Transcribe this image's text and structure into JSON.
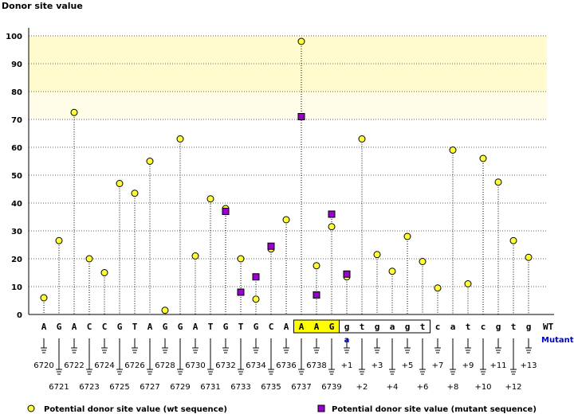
{
  "colors": {
    "wt_marker": "#ffff33",
    "mutant_marker": "#9900cc",
    "mutant_label": "#0000cc",
    "band": "#fffbcc",
    "band_faint": "#fffde8",
    "highlight": "#ffff00",
    "grid": "#666666"
  },
  "chart_data": {
    "type": "scatter",
    "ylabel": "Donor site value",
    "ylim": [
      0,
      100
    ],
    "yticks": [
      0,
      10,
      20,
      30,
      40,
      50,
      60,
      70,
      80,
      90,
      100
    ],
    "band_range": [
      70,
      100
    ],
    "grid": true,
    "sequence": {
      "bases": [
        "A",
        "G",
        "A",
        "C",
        "C",
        "G",
        "T",
        "A",
        "G",
        "G",
        "A",
        "T",
        "G",
        "T",
        "G",
        "C",
        "A",
        "A",
        "A",
        "G",
        "g",
        "t",
        "g",
        "a",
        "g",
        "t",
        "c",
        "a",
        "t",
        "c",
        "g",
        "t",
        "g"
      ],
      "exon_box": [
        17,
        19
      ],
      "intron_box": [
        20,
        25
      ],
      "wt_label": "WT",
      "mutant_label": "Mutant",
      "mutant_index": 20,
      "mutant_base": "a"
    },
    "positions": [
      "6720",
      "6721",
      "6722",
      "6723",
      "6724",
      "6725",
      "6726",
      "6727",
      "6728",
      "6729",
      "6730",
      "6731",
      "6732",
      "6733",
      "6734",
      "6735",
      "6736",
      "6737",
      "6738",
      "6739",
      "+1",
      "+2",
      "+3",
      "+4",
      "+5",
      "+6",
      "+7",
      "+8",
      "+9",
      "+10",
      "+11",
      "+12",
      "+13"
    ],
    "series": [
      {
        "name": "Potential donor site value (wt sequence)",
        "marker": "circle",
        "values": [
          6,
          26.5,
          72.5,
          20,
          15,
          47,
          43.5,
          55,
          1.5,
          63,
          21,
          41.5,
          38,
          20,
          5.5,
          23.5,
          34,
          98,
          17.5,
          31.5,
          13.5,
          63,
          21.5,
          15.5,
          28,
          19,
          9.5,
          59,
          11,
          56,
          47.5,
          26.5,
          20.5
        ]
      },
      {
        "name": "Potential donor site value (mutant sequence)",
        "marker": "square",
        "points": [
          {
            "index": 12,
            "value": 37
          },
          {
            "index": 13,
            "value": 8
          },
          {
            "index": 14,
            "value": 13.5
          },
          {
            "index": 15,
            "value": 24.5
          },
          {
            "index": 17,
            "value": 71
          },
          {
            "index": 18,
            "value": 7
          },
          {
            "index": 19,
            "value": 36
          },
          {
            "index": 20,
            "value": 14.5
          }
        ]
      }
    ],
    "legend": [
      {
        "marker": "circle",
        "label": "Potential donor site value (wt sequence)"
      },
      {
        "marker": "square",
        "label": "Potential donor site value (mutant sequence)"
      }
    ],
    "legend_position": "bottom"
  }
}
